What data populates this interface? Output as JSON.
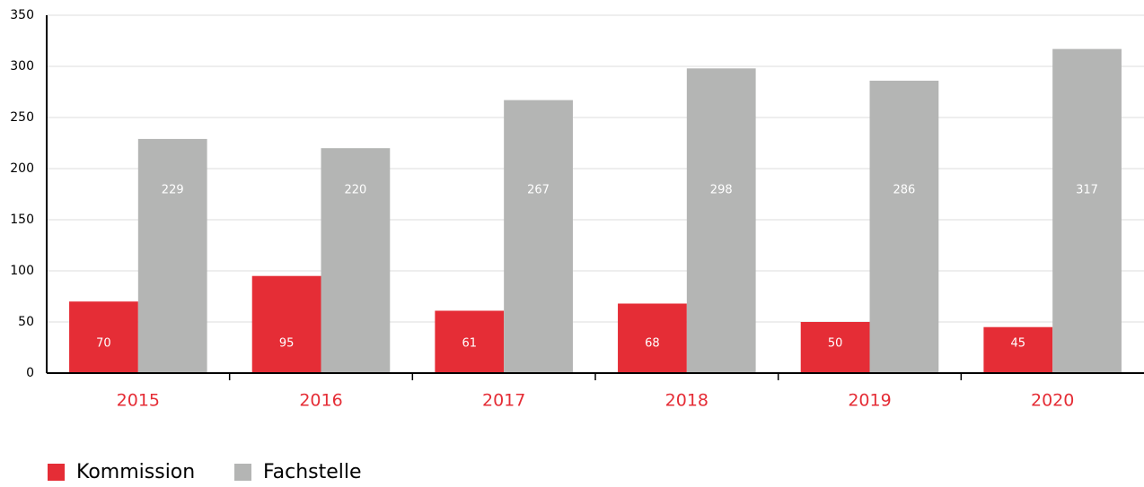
{
  "chart_data": {
    "type": "bar",
    "categories": [
      "2015",
      "2016",
      "2017",
      "2018",
      "2019",
      "2020"
    ],
    "series": [
      {
        "name": "Kommission",
        "color": "#e52d36",
        "values": [
          70,
          95,
          61,
          68,
          50,
          45
        ]
      },
      {
        "name": "Fachstelle",
        "color": "#b4b5b4",
        "values": [
          229,
          220,
          267,
          298,
          286,
          317
        ]
      }
    ],
    "ylim": [
      0,
      350
    ],
    "yticks": [
      0,
      50,
      100,
      150,
      200,
      250,
      300,
      350
    ],
    "grid": true,
    "legend": "bottom-left"
  }
}
